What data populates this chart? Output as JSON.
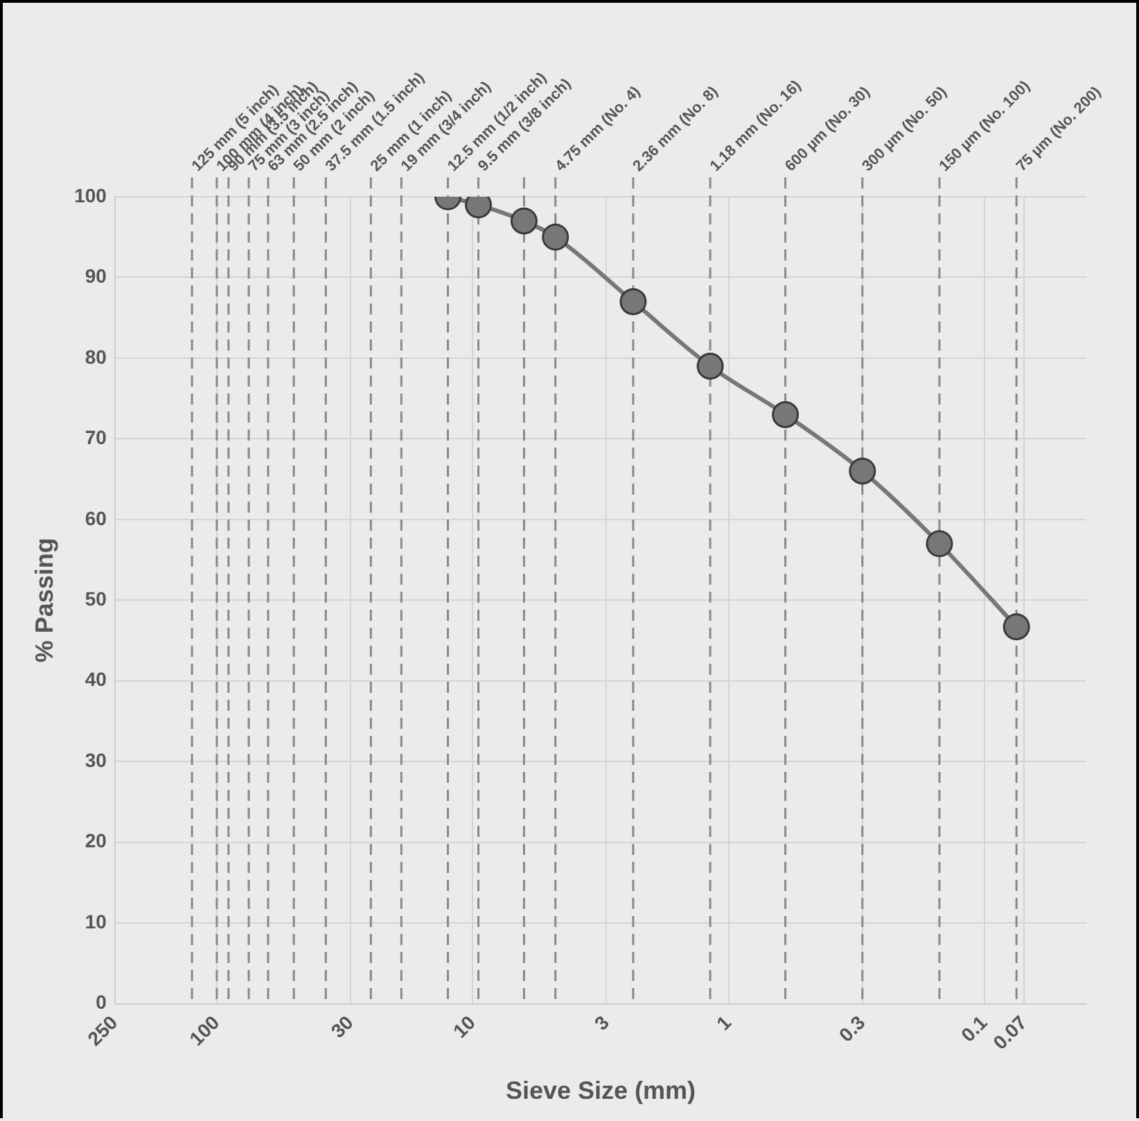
{
  "chart_data": {
    "type": "line",
    "xlabel": "Sieve Size (mm)",
    "ylabel": "% Passing",
    "log": "x",
    "xlim": [
      250,
      0.04
    ],
    "xticks": [
      250,
      100,
      30,
      10,
      3,
      1,
      0.3,
      0.1,
      0.07
    ],
    "ylim": [
      0,
      100
    ],
    "yticks": [
      0,
      10,
      20,
      30,
      40,
      50,
      60,
      70,
      80,
      90,
      100
    ],
    "grid": true,
    "legend": false,
    "marker": "circle",
    "line_style": "solid",
    "series": [
      {
        "color": "#777777",
        "x": [
          12.5,
          9.5,
          6.3,
          4.75,
          2.36,
          1.18,
          0.6,
          0.3,
          0.15,
          0.075
        ],
        "values": [
          100,
          99,
          97,
          95,
          87,
          79,
          73,
          66,
          57,
          46.7
        ]
      }
    ],
    "ref_lines": [
      {
        "axis": "x",
        "value": 125,
        "label": "125 mm (5 inch)",
        "color": "#888888",
        "line_style": "dashed"
      },
      {
        "axis": "x",
        "value": 100,
        "label": "100 mm (4 inch)",
        "color": "#888888",
        "line_style": "dashed"
      },
      {
        "axis": "x",
        "value": 90,
        "label": "90 mm (3.5 inch)",
        "color": "#888888",
        "line_style": "dashed"
      },
      {
        "axis": "x",
        "value": 75,
        "label": "75 mm (3 inch)",
        "color": "#888888",
        "line_style": "dashed"
      },
      {
        "axis": "x",
        "value": 63,
        "label": "63 mm (2.5 inch)",
        "color": "#888888",
        "line_style": "dashed"
      },
      {
        "axis": "x",
        "value": 50,
        "label": "50 mm (2 inch)",
        "color": "#888888",
        "line_style": "dashed"
      },
      {
        "axis": "x",
        "value": 37.5,
        "label": "37.5 mm (1.5 inch)",
        "color": "#888888",
        "line_style": "dashed"
      },
      {
        "axis": "x",
        "value": 25,
        "label": "25 mm (1 inch)",
        "color": "#888888",
        "line_style": "dashed"
      },
      {
        "axis": "x",
        "value": 19,
        "label": "19 mm (3/4 inch)",
        "color": "#888888",
        "line_style": "dashed"
      },
      {
        "axis": "x",
        "value": 12.5,
        "label": "12.5 mm (1/2 inch)",
        "color": "#888888",
        "line_style": "dashed"
      },
      {
        "axis": "x",
        "value": 9.5,
        "label": "9.5 mm (3/8 inch)",
        "color": "#888888",
        "line_style": "dashed"
      },
      {
        "axis": "x",
        "value": 6.3,
        "color": "#888888",
        "line_style": "dashed"
      },
      {
        "axis": "x",
        "value": 4.75,
        "label": "4.75 mm (No. 4)",
        "color": "#888888",
        "line_style": "dashed"
      },
      {
        "axis": "x",
        "value": 2.36,
        "label": "2.36 mm (No. 8)",
        "color": "#888888",
        "line_style": "dashed"
      },
      {
        "axis": "x",
        "value": 1.18,
        "label": "1.18 mm (No. 16)",
        "color": "#888888",
        "line_style": "dashed"
      },
      {
        "axis": "x",
        "value": 0.6,
        "label": "600 µm (No. 30)",
        "color": "#888888",
        "line_style": "dashed"
      },
      {
        "axis": "x",
        "value": 0.3,
        "label": "300 µm (No. 50)",
        "color": "#888888",
        "line_style": "dashed"
      },
      {
        "axis": "x",
        "value": 0.15,
        "label": "150 µm (No. 100)",
        "color": "#888888",
        "line_style": "dashed"
      },
      {
        "axis": "x",
        "value": 0.075,
        "label": "75 µm (No. 200)",
        "color": "#888888",
        "line_style": "dashed"
      }
    ]
  }
}
